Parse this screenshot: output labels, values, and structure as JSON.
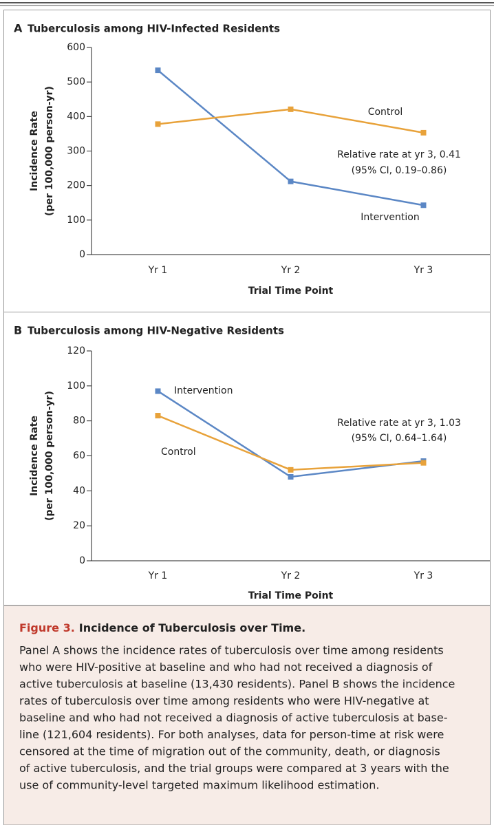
{
  "chart_data": [
    {
      "type": "line",
      "panel": "A",
      "title": "Tuberculosis among HIV-Infected Residents",
      "x_label": "Trial Time Point",
      "y_label": [
        "Incidence Rate",
        "(per 100,000 person-yr)"
      ],
      "categories": [
        "Yr 1",
        "Yr 2",
        "Yr 3"
      ],
      "series": [
        {
          "name": "Intervention",
          "color": "#5b87c5",
          "values": [
            534,
            212,
            143
          ]
        },
        {
          "name": "Control",
          "color": "#e8a23a",
          "values": [
            378,
            421,
            353
          ]
        }
      ],
      "annotations": [
        "Relative rate at yr 3, 0.41",
        "(95% CI, 0.19–0.86)"
      ],
      "ylim": [
        0,
        600
      ],
      "yticks": [
        0,
        100,
        200,
        300,
        400,
        500,
        600
      ]
    },
    {
      "type": "line",
      "panel": "B",
      "title": "Tuberculosis among HIV-Negative Residents",
      "x_label": "Trial Time Point",
      "y_label": [
        "Incidence Rate",
        "(per 100,000 person-yr)"
      ],
      "categories": [
        "Yr 1",
        "Yr 2",
        "Yr 3"
      ],
      "series": [
        {
          "name": "Intervention",
          "color": "#5b87c5",
          "values": [
            97,
            48,
            57
          ]
        },
        {
          "name": "Control",
          "color": "#e8a23a",
          "values": [
            83,
            52,
            56
          ]
        }
      ],
      "annotations": [
        "Relative rate at yr 3, 1.03",
        "(95% CI, 0.64–1.64)"
      ],
      "ylim": [
        0,
        120
      ],
      "yticks": [
        0,
        20,
        40,
        60,
        80,
        100,
        120
      ]
    }
  ],
  "caption": {
    "label": "Figure 3.",
    "title": "Incidence of Tuberculosis over Time.",
    "lines": [
      "Panel A shows the incidence rates of tuberculosis over time among residents",
      "who were HIV-positive at baseline and who had not received a diagnosis of",
      "active tuberculosis at baseline (13,430 residents). Panel B shows the incidence",
      "rates of tuberculosis over time among residents who were HIV-negative at",
      "baseline and who had not received a diagnosis of active tuberculosis at base-",
      "line (121,604 residents). For both analyses, data for person-time at risk were",
      "censored at the time of migration out of the community, death, or diagnosis",
      "of active tuberculosis, and the trial groups were compared at 3 years with the",
      "use of community-level targeted maximum likelihood estimation."
    ]
  }
}
